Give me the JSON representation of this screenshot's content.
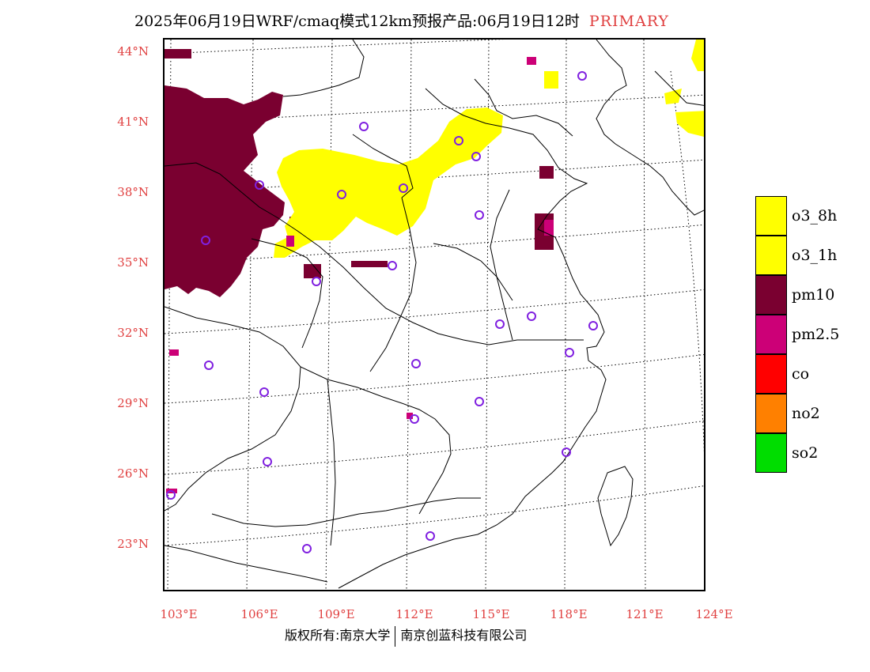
{
  "title": {
    "text": "2025年06月19日WRF/cmaq模式12km预报产品:06月19日12时",
    "tag": "PRIMARY"
  },
  "axes": {
    "lat_labels": [
      "44°N",
      "41°N",
      "38°N",
      "35°N",
      "32°N",
      "29°N",
      "26°N",
      "23°N"
    ],
    "lon_labels": [
      "103°E",
      "106°E",
      "109°E",
      "112°E",
      "115°E",
      "118°E",
      "121°E",
      "124°E"
    ]
  },
  "legend": {
    "items": [
      {
        "label": "o3_8h",
        "color": "#ffff00"
      },
      {
        "label": "o3_1h",
        "color": "#ffff00"
      },
      {
        "label": "pm10",
        "color": "#7a0030"
      },
      {
        "label": "pm2.5",
        "color": "#cc0077"
      },
      {
        "label": "co",
        "color": "#ff0000"
      },
      {
        "label": "no2",
        "color": "#ff8000"
      },
      {
        "label": "so2",
        "color": "#00dd00"
      }
    ]
  },
  "footer": {
    "left": "版权所有:南京大学",
    "right": "南京创蓝科技有限公司"
  },
  "colors": {
    "accent": "#e04040",
    "pm10": "#7a0030",
    "o3": "#ffff00",
    "pm25": "#cc0077",
    "station": "#8020e0"
  }
}
